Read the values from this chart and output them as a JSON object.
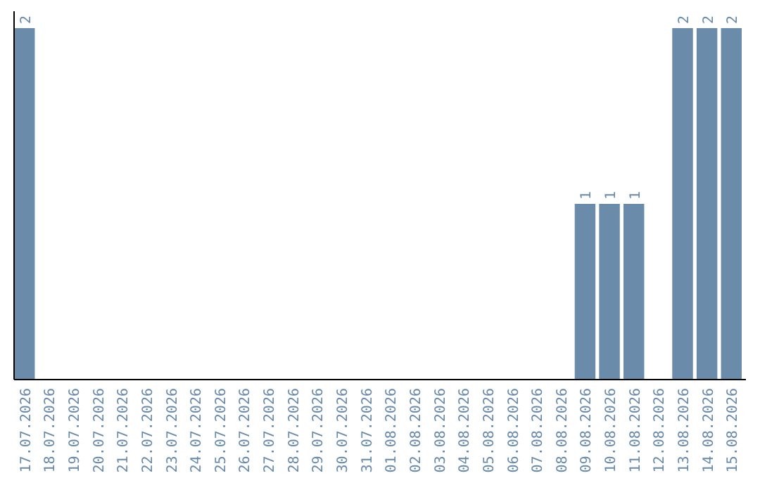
{
  "chart_data": {
    "type": "bar",
    "categories": [
      "17.07.2026",
      "18.07.2026",
      "19.07.2026",
      "20.07.2026",
      "21.07.2026",
      "22.07.2026",
      "23.07.2026",
      "24.07.2026",
      "25.07.2026",
      "26.07.2026",
      "27.07.2026",
      "28.07.2026",
      "29.07.2026",
      "30.07.2026",
      "31.07.2026",
      "01.08.2026",
      "02.08.2026",
      "03.08.2026",
      "04.08.2026",
      "05.08.2026",
      "06.08.2026",
      "07.08.2026",
      "08.08.2026",
      "09.08.2026",
      "10.08.2026",
      "11.08.2026",
      "12.08.2026",
      "13.08.2026",
      "14.08.2026",
      "15.08.2026"
    ],
    "values": [
      2,
      0,
      0,
      0,
      0,
      0,
      0,
      0,
      0,
      0,
      0,
      0,
      0,
      0,
      0,
      0,
      0,
      0,
      0,
      0,
      0,
      0,
      0,
      1,
      1,
      1,
      0,
      2,
      2,
      2
    ],
    "value_labels": [
      "2",
      null,
      null,
      null,
      null,
      null,
      null,
      null,
      null,
      null,
      null,
      null,
      null,
      null,
      null,
      null,
      null,
      null,
      null,
      null,
      null,
      null,
      null,
      "1",
      "1",
      "1",
      null,
      "2",
      "2",
      "2"
    ],
    "color": "#6a8caa"
  }
}
